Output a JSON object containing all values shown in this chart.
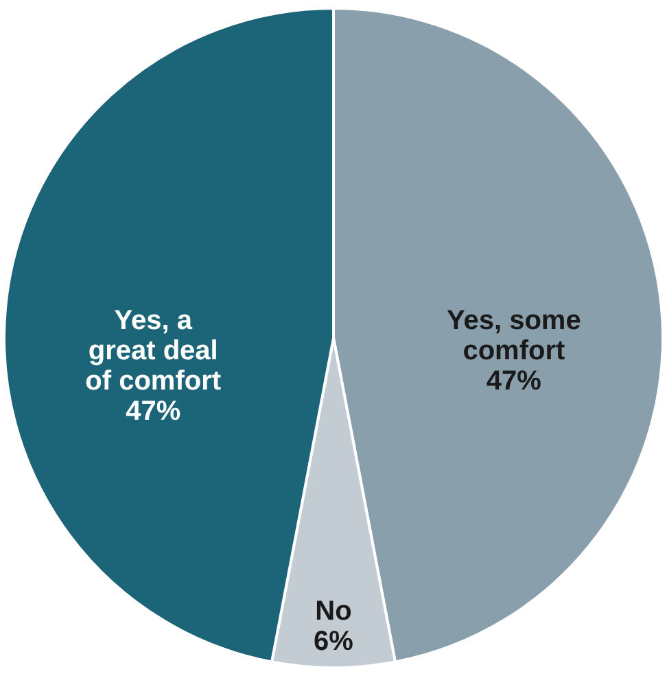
{
  "chart_data": {
    "type": "pie",
    "categories": [
      "Yes, some comfort",
      "No",
      "Yes, a great deal of comfort"
    ],
    "values": [
      47,
      6,
      47
    ],
    "colors": [
      "#8a9fac",
      "#c3ccd3",
      "#1c6478"
    ],
    "value_labels": [
      "47%",
      "6%",
      "47%"
    ]
  }
}
